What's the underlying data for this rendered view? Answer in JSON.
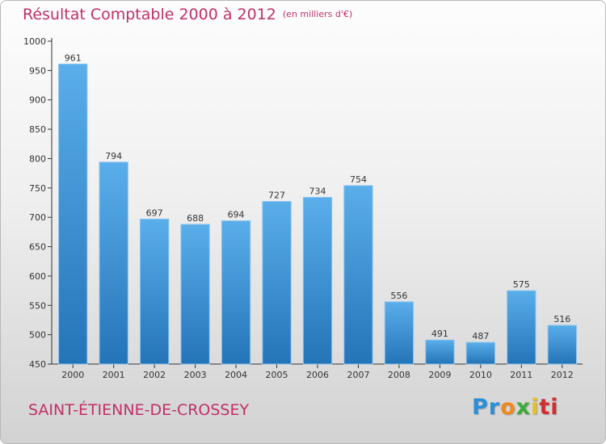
{
  "chart_data": {
    "type": "bar",
    "title": "Résultat Comptable 2000 à 2012",
    "subtitle": "(en milliers d'€)",
    "categories": [
      "2000",
      "2001",
      "2002",
      "2003",
      "2004",
      "2005",
      "2006",
      "2007",
      "2008",
      "2009",
      "2010",
      "2011",
      "2012"
    ],
    "values": [
      961,
      794,
      697,
      688,
      694,
      727,
      734,
      754,
      556,
      491,
      487,
      575,
      516
    ],
    "yticks": [
      450,
      500,
      550,
      600,
      650,
      700,
      750,
      800,
      850,
      900,
      950,
      1000
    ],
    "ylim": [
      450,
      1000
    ],
    "xlabel": "",
    "ylabel": "",
    "grid": false,
    "bar_color": "#3a8fd6"
  },
  "footer": {
    "commune": "SAINT-ÉTIENNE-DE-CROSSEY",
    "brand": "Proxiti",
    "brand_parts": [
      "Pr",
      "o",
      "x",
      "i",
      "ti"
    ]
  },
  "colors": {
    "title": "#c0306a",
    "axis": "#333333"
  }
}
